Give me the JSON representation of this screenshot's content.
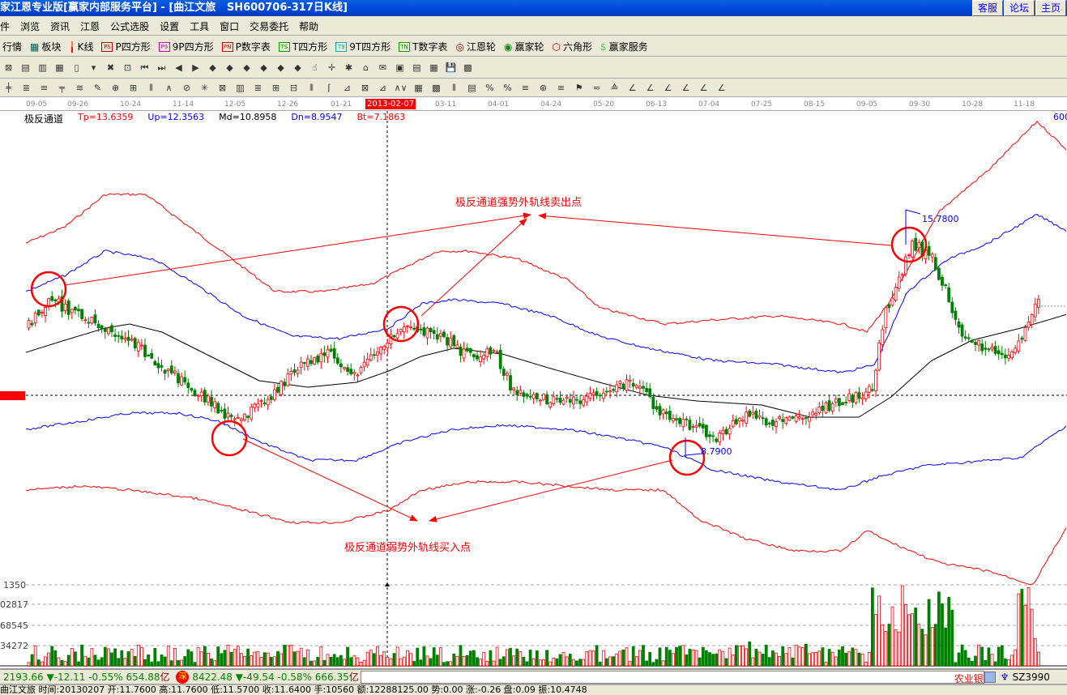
{
  "window": {
    "title": "家江恩专业版[赢家内部服务平台] - [曲江文旅   SH600706-317日K线]",
    "buttons": [
      "客服",
      "论坛",
      "主页"
    ]
  },
  "menu": [
    "件",
    "浏览",
    "资讯",
    "江恩",
    "公式选股",
    "设置",
    "工具",
    "窗口",
    "交易委托",
    "帮助"
  ],
  "toolbar1": [
    {
      "label": "行情",
      "icon": "quote-icon"
    },
    {
      "label": "板块",
      "icon": "sector-grid-icon"
    },
    {
      "label": "K线",
      "icon": "candlestick-icon"
    },
    {
      "label": "P四方形",
      "icon": "ps-box-icon",
      "tag": "PS",
      "color": "#c00000"
    },
    {
      "label": "9P四方形",
      "icon": "p9-box-icon",
      "tag": "P9",
      "color": "#cc00cc"
    },
    {
      "label": "P数字表",
      "icon": "pn-box-icon",
      "tag": "PN",
      "color": "#c00000"
    },
    {
      "label": "T四方形",
      "icon": "ts-box-icon",
      "tag": "TS",
      "color": "#00a000"
    },
    {
      "label": "9T四方形",
      "icon": "t9-box-icon",
      "tag": "T9",
      "color": "#00b0c0"
    },
    {
      "label": "T数字表",
      "icon": "tn-box-icon",
      "tag": "TN",
      "color": "#00a000"
    },
    {
      "label": "江恩轮",
      "icon": "gann-wheel-icon"
    },
    {
      "label": "赢家轮",
      "icon": "winner-wheel-icon"
    },
    {
      "label": "六角形",
      "icon": "hexagon-icon"
    },
    {
      "label": "赢家服务",
      "icon": "dollar-icon"
    }
  ],
  "date_axis": {
    "labels": [
      "09-05",
      "09-26",
      "10-24",
      "11-14",
      "12-05",
      "12-26",
      "01-21",
      "03-11",
      "04-01",
      "04-24",
      "05-20",
      "06-13",
      "07-04",
      "07-25",
      "08-15",
      "09-05",
      "09-30",
      "10-28",
      "11-18"
    ],
    "current": "2013-02-07"
  },
  "indicator": {
    "name": "极反通道",
    "tp": "Tp=13.6359",
    "up": "Up=12.3563",
    "md": "Md=10.8958",
    "dn": "Dn=8.9547",
    "bt": "Bt=7.1863",
    "right_label": "600"
  },
  "colors": {
    "up": "#ff0000",
    "down": "#008000",
    "band_outer": "#ff0000",
    "band_inner": "#0000ff",
    "mid": "#000000"
  },
  "annotations": {
    "sell": "极反通道强势外轨线卖出点",
    "buy": "极反通道弱势外轨线买入点",
    "high": "15.7800",
    "low": "8.7900"
  },
  "volume_axis": [
    "1350",
    "02817",
    "68545",
    "34272"
  ],
  "status": {
    "sh_index": "2193.66",
    "sh_change": "-12.11",
    "sh_pct": "-0.55%",
    "sh_amount": "654.88",
    "unit": "亿",
    "sz_badge": "深",
    "sz_index": "8422.48",
    "sz_change": "-49.54",
    "sz_pct": "-0.58%",
    "sz_amount": "666.35",
    "right_text": "农业银",
    "code": "SZ3990"
  },
  "info": "曲江文旅 时间:20130207 开:11.7600 高:11.7600 低:11.5700 收:11.6400 手:10560 额:12288125.00 势:0.00 涨:-0.26 盘:0.09 振:10.4748"
}
